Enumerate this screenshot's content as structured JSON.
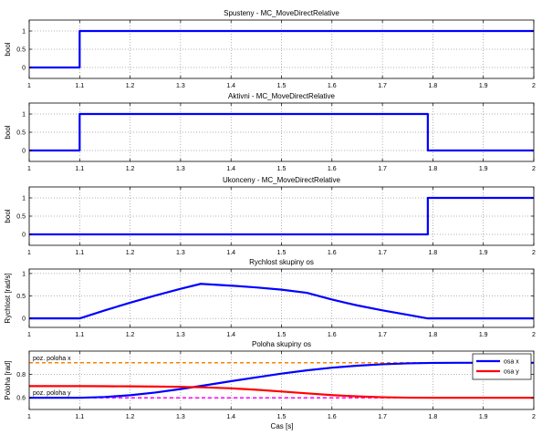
{
  "figure": {
    "xlabel": "Cas [s]"
  },
  "colors": {
    "blue": "#0000ff",
    "red": "#ff0000",
    "orange": "#ff8000",
    "magenta": "#ff00ff",
    "axes": "#000000",
    "grid": "#000000"
  },
  "chart_data": [
    {
      "type": "line",
      "title": "Spusteny - MC_MoveDirectRelative",
      "ylabel": "bool",
      "xlim": [
        1,
        2
      ],
      "ylim": [
        -0.3,
        1.3
      ],
      "xticks": [
        1,
        1.1,
        1.2,
        1.3,
        1.4,
        1.5,
        1.6,
        1.7,
        1.8,
        1.9,
        2
      ],
      "xticklabels": [
        "1",
        "1.1",
        "1.2",
        "1.3",
        "1.4",
        "1.5",
        "1.6",
        "1.7",
        "1.8",
        "1.9",
        "2"
      ],
      "yticks": [
        0,
        0.5,
        1
      ],
      "yticklabels": [
        "0",
        "0.5",
        "1"
      ],
      "grid": true,
      "series": [
        {
          "color": "#0000ff",
          "x": [
            1,
            1.1,
            1.1,
            2
          ],
          "y": [
            0,
            0,
            1,
            1
          ]
        }
      ]
    },
    {
      "type": "line",
      "title": "Aktivni - MC_MoveDirectRelative",
      "ylabel": "bool",
      "xlim": [
        1,
        2
      ],
      "ylim": [
        -0.3,
        1.3
      ],
      "xticks": [
        1,
        1.1,
        1.2,
        1.3,
        1.4,
        1.5,
        1.6,
        1.7,
        1.8,
        1.9,
        2
      ],
      "xticklabels": [
        "1",
        "1.1",
        "1.2",
        "1.3",
        "1.4",
        "1.5",
        "1.6",
        "1.7",
        "1.8",
        "1.9",
        "2"
      ],
      "yticks": [
        0,
        0.5,
        1
      ],
      "yticklabels": [
        "0",
        "0.5",
        "1"
      ],
      "grid": true,
      "series": [
        {
          "color": "#0000ff",
          "x": [
            1,
            1.1,
            1.1,
            1.79,
            1.79,
            2
          ],
          "y": [
            0,
            0,
            1,
            1,
            0,
            0
          ]
        }
      ]
    },
    {
      "type": "line",
      "title": "Ukonceny - MC_MoveDirectRelative",
      "ylabel": "bool",
      "xlim": [
        1,
        2
      ],
      "ylim": [
        -0.3,
        1.3
      ],
      "xticks": [
        1,
        1.1,
        1.2,
        1.3,
        1.4,
        1.5,
        1.6,
        1.7,
        1.8,
        1.9,
        2
      ],
      "xticklabels": [
        "1",
        "1.1",
        "1.2",
        "1.3",
        "1.4",
        "1.5",
        "1.6",
        "1.7",
        "1.8",
        "1.9",
        "2"
      ],
      "yticks": [
        0,
        0.5,
        1
      ],
      "yticklabels": [
        "0",
        "0.5",
        "1"
      ],
      "grid": true,
      "series": [
        {
          "color": "#0000ff",
          "x": [
            1,
            1.79,
            1.79,
            2
          ],
          "y": [
            0,
            0,
            1,
            1
          ]
        }
      ]
    },
    {
      "type": "line",
      "title": "Rychlost skupiny os",
      "ylabel": "Rychlost [rad/s]",
      "xlim": [
        1,
        2
      ],
      "ylim": [
        -0.2,
        1.1
      ],
      "xticks": [
        1,
        1.1,
        1.2,
        1.3,
        1.4,
        1.5,
        1.6,
        1.7,
        1.8,
        1.9,
        2
      ],
      "xticklabels": [
        "1",
        "1.1",
        "1.2",
        "1.3",
        "1.4",
        "1.5",
        "1.6",
        "1.7",
        "1.8",
        "1.9",
        "2"
      ],
      "yticks": [
        0,
        0.5,
        1
      ],
      "yticklabels": [
        "0",
        "0.5",
        "1"
      ],
      "grid": true,
      "series": [
        {
          "color": "#0000ff",
          "x": [
            1,
            1.1,
            1.15,
            1.2,
            1.25,
            1.3,
            1.34,
            1.4,
            1.45,
            1.5,
            1.55,
            1.6,
            1.65,
            1.7,
            1.75,
            1.79,
            1.85,
            1.9,
            2
          ],
          "y": [
            0,
            0,
            0.18,
            0.35,
            0.51,
            0.66,
            0.77,
            0.73,
            0.69,
            0.64,
            0.57,
            0.42,
            0.29,
            0.18,
            0.08,
            0,
            0,
            0,
            0
          ]
        }
      ]
    },
    {
      "type": "line",
      "title": "Poloha skupiny os",
      "ylabel": "Poloha [rad]",
      "xlim": [
        1,
        2
      ],
      "ylim": [
        0.5,
        1.0
      ],
      "xticks": [
        1,
        1.1,
        1.2,
        1.3,
        1.4,
        1.5,
        1.6,
        1.7,
        1.8,
        1.9,
        2
      ],
      "xticklabels": [
        "1",
        "1.1",
        "1.2",
        "1.3",
        "1.4",
        "1.5",
        "1.6",
        "1.7",
        "1.8",
        "1.9",
        "2"
      ],
      "yticks": [
        0.6,
        0.8
      ],
      "yticklabels": [
        "0.6",
        "0.8"
      ],
      "grid": true,
      "legend": {
        "placement": "top-right"
      },
      "reference_lines": [
        {
          "label": "poz. poloha x",
          "y": 0.9,
          "color": "#ff8000"
        },
        {
          "label": "poz. poloha y",
          "y": 0.6,
          "color": "#ff00ff"
        }
      ],
      "series": [
        {
          "name": "osa x",
          "color": "#0000ff",
          "x": [
            1,
            1.1,
            1.15,
            1.2,
            1.25,
            1.3,
            1.35,
            1.4,
            1.45,
            1.5,
            1.55,
            1.6,
            1.65,
            1.7,
            1.75,
            1.8,
            1.85,
            1.9,
            2
          ],
          "y": [
            0.6,
            0.6,
            0.607,
            0.622,
            0.645,
            0.675,
            0.708,
            0.742,
            0.775,
            0.807,
            0.835,
            0.858,
            0.875,
            0.887,
            0.895,
            0.899,
            0.9,
            0.9,
            0.9
          ]
        },
        {
          "name": "osa y",
          "color": "#ff0000",
          "x": [
            1,
            1.1,
            1.15,
            1.2,
            1.25,
            1.3,
            1.35,
            1.4,
            1.45,
            1.5,
            1.55,
            1.6,
            1.65,
            1.7,
            1.75,
            1.8,
            1.85,
            1.9,
            2
          ],
          "y": [
            0.7,
            0.7,
            0.699,
            0.698,
            0.696,
            0.694,
            0.689,
            0.681,
            0.669,
            0.654,
            0.638,
            0.623,
            0.612,
            0.605,
            0.601,
            0.6,
            0.6,
            0.6,
            0.6
          ]
        }
      ]
    }
  ]
}
